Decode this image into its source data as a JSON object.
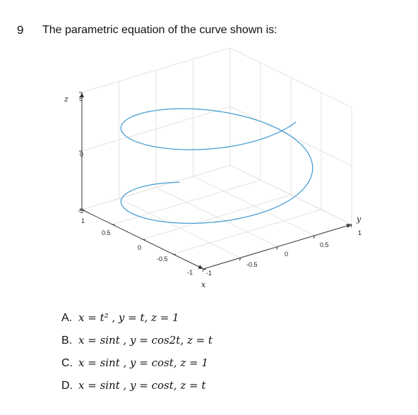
{
  "question": {
    "number": "9",
    "text": "The parametric equation of the curve shown is:"
  },
  "chart_data": {
    "type": "line",
    "projection": "3d",
    "series": [
      {
        "x_expr": "sin(t)",
        "y_expr": "cos(t)",
        "z_expr": "t",
        "t_range": [
          -5,
          5
        ],
        "color": "#4a9fd4"
      }
    ],
    "xlabel": "x",
    "ylabel": "y",
    "zlabel": "z",
    "xlim": [
      -1,
      1
    ],
    "ylim": [
      -1,
      1
    ],
    "zlim": [
      -5,
      5
    ],
    "x_ticks": [
      "1",
      "0.5",
      "0",
      "-0.5",
      "-1"
    ],
    "y_ticks": [
      "-1",
      "-0.5",
      "0",
      "0.5",
      "1"
    ],
    "z_ticks": [
      "5",
      "0",
      "-5"
    ],
    "grid": true
  },
  "options": [
    {
      "letter": "A.",
      "equation": "x = t² , y = t,  z = 1"
    },
    {
      "letter": "B.",
      "equation": "x = sint , y = cos2t,  z = t"
    },
    {
      "letter": "C.",
      "equation": "x = sint , y = cost,  z = 1"
    },
    {
      "letter": "D.",
      "equation": "x = sint , y = cost,  z = t"
    }
  ]
}
